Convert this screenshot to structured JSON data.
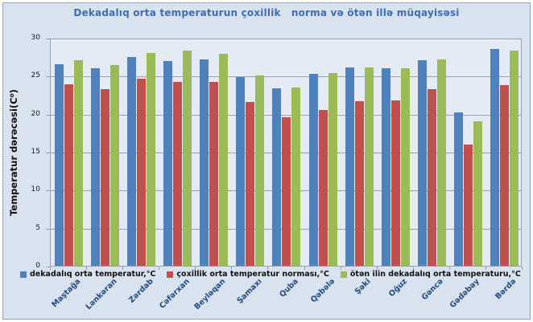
{
  "colors": {
    "background": "#D9E2EF",
    "plot_background": "#E5EBF5",
    "gridline": "#97A1AE",
    "frame_border": "#93A4BD",
    "title_text": "#3D6EB0",
    "category_label": "#1F497D",
    "tick_label": "#1a1a1a",
    "legend_text": "#111111"
  },
  "chart_data": {
    "type": "bar",
    "title": "Dekadalıq orta temperaturun çoxillik   norma və ötən illə müqayisəsi",
    "xlabel": "",
    "ylabel": "Temperatur dərəcəsi(C⁰)",
    "ylim": [
      0,
      30
    ],
    "yticks": [
      0,
      5,
      10,
      15,
      20,
      25,
      30
    ],
    "grid": true,
    "legend_position": "bottom",
    "categories": [
      "Maştağa",
      "Lənkəran",
      "Zərdab",
      "Cəfərxan",
      "Beyləqan",
      "Şamaxı",
      "Quba",
      "Qəbələ",
      "Şəki",
      "Oğuz",
      "Gəncə",
      "Gədəbəy",
      "Bərdə"
    ],
    "series": [
      {
        "name": "dekadalıq orta temperatur,°C",
        "color": "#4F81BD",
        "values": [
          26.5,
          26.0,
          27.5,
          26.9,
          27.2,
          24.8,
          23.3,
          25.2,
          26.1,
          26.0,
          27.0,
          20.2,
          28.5
        ]
      },
      {
        "name": "çoxillik orta temperatur norması,°C",
        "color": "#C0504D",
        "values": [
          23.9,
          23.2,
          24.6,
          24.2,
          24.2,
          21.5,
          19.5,
          20.5,
          21.7,
          21.8,
          23.2,
          16.0,
          23.8
        ]
      },
      {
        "name": "ötən ilin dekadalıq orta temperaturu,°C",
        "color": "#9BBB59",
        "values": [
          27.0,
          26.4,
          28.0,
          28.3,
          27.9,
          25.0,
          23.4,
          25.4,
          26.1,
          26.0,
          27.1,
          19.0,
          28.3
        ]
      }
    ]
  }
}
